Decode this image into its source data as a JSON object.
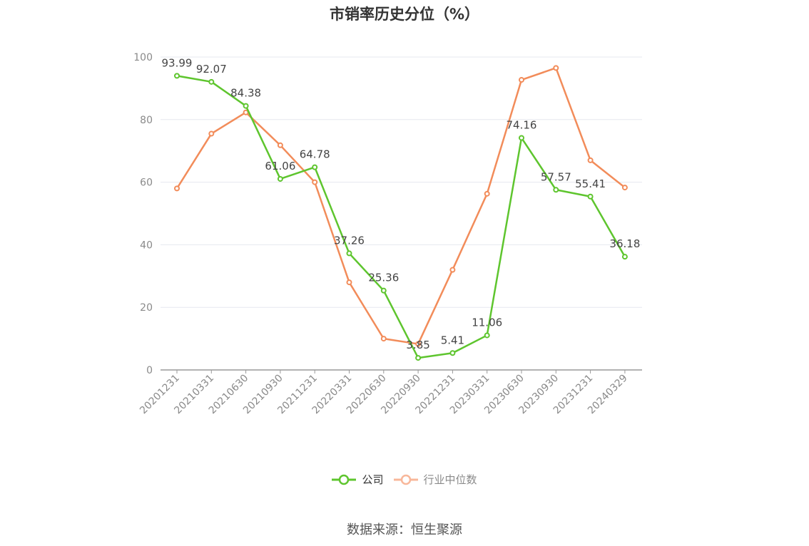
{
  "source_label": "数据来源：恒生聚源",
  "chart_data": {
    "type": "line",
    "title": "市销率历史分位（%）",
    "categories": [
      "20201231",
      "20210331",
      "20210630",
      "20210930",
      "20211231",
      "20220331",
      "20220630",
      "20220930",
      "20221231",
      "20230331",
      "20230630",
      "20230930",
      "20231231",
      "20240329"
    ],
    "ylim": [
      0,
      100
    ],
    "yticks": [
      0,
      20,
      40,
      60,
      80,
      100
    ],
    "grid": true,
    "legend_position": "bottom",
    "series": [
      {
        "name": "公司",
        "color": "#5ec52e",
        "show_labels": true,
        "values": [
          93.99,
          92.07,
          84.38,
          61.06,
          64.78,
          37.26,
          25.36,
          3.85,
          5.41,
          11.06,
          74.16,
          57.57,
          55.41,
          36.18
        ]
      },
      {
        "name": "行业中位数",
        "color": "#f28c5a",
        "show_labels": false,
        "values": [
          58,
          75.5,
          82.3,
          71.8,
          60,
          28,
          10,
          8.3,
          32,
          56.3,
          92.7,
          96.5,
          67,
          58.3
        ]
      }
    ]
  }
}
